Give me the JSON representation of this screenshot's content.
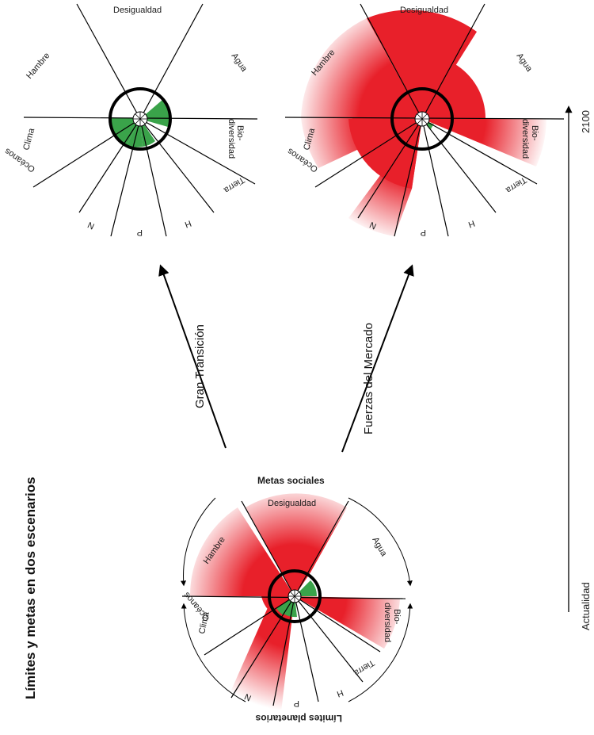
{
  "title": "Límites y metas en dos escenarios",
  "timeline": {
    "start": "Actualidad",
    "end": "2100"
  },
  "arrows": {
    "top": "Gran Transición",
    "bottom": "Fuerzas del Mercado"
  },
  "ring_labels": {
    "social": "Metas sociales",
    "planetary": "Límites planetarios"
  },
  "sectors": {
    "inequality": "Desigualdad",
    "water": "Agua",
    "biodiversity_1": "Bio-",
    "biodiversity_2": "diversidad",
    "land": "Tierra",
    "hunger": "Hambre",
    "climate": "Clima",
    "oceans": "Océanos",
    "nitrogen": "N",
    "phosphorus": "P",
    "h": "H"
  },
  "colors": {
    "overshoot": "#e8202a",
    "within": "#3aa34a",
    "ring": "#000000"
  }
}
